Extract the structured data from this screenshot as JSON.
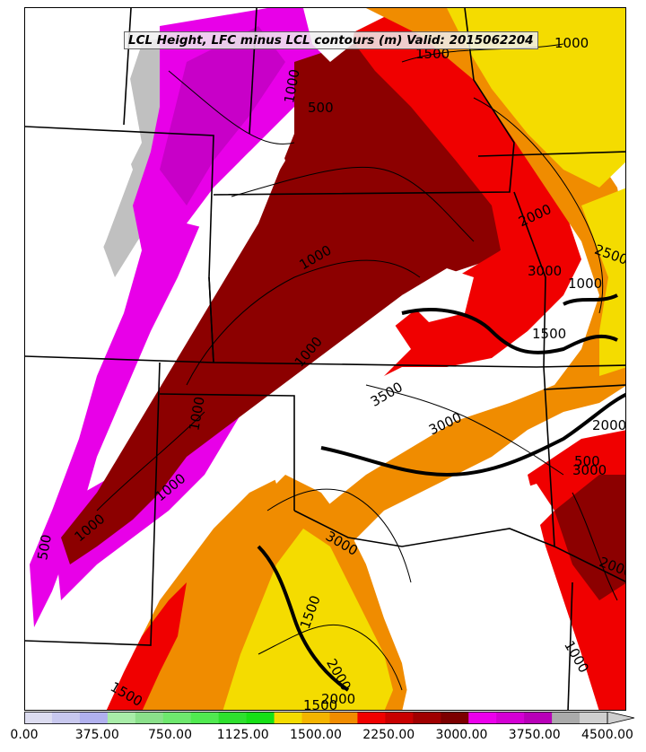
{
  "title": "LCL Height, LFC minus LCL contours (m) Valid: 2015062204",
  "colorbar": {
    "colors": [
      "#dcdcf0",
      "#c8c8ee",
      "#b0b0ee",
      "#a8eca8",
      "#8ae08a",
      "#6ee86e",
      "#50ea50",
      "#2ee02e",
      "#16e016",
      "#f4dc00",
      "#f4b400",
      "#f08c00",
      "#f00000",
      "#c80000",
      "#a00000",
      "#7c0000",
      "#ec00ec",
      "#d400d4",
      "#b800b8",
      "#aaaaaa",
      "#cfcfcf"
    ],
    "tick_labels": [
      "0.00",
      "375.00",
      "750.00",
      "1125.00",
      "1500.00",
      "2250.00",
      "3000.00",
      "3750.00",
      "4500.00"
    ],
    "extend": "max"
  },
  "contour_labels": [
    "1000",
    "1500",
    "500",
    "1000",
    "1000",
    "2000",
    "2500",
    "3000",
    "1000",
    "1500",
    "3500",
    "3000",
    "2000",
    "500",
    "1000",
    "3000",
    "1000",
    "1500",
    "1000",
    "2000",
    "1500",
    "2000",
    "1500",
    "3000",
    "1000",
    "1000",
    "2000",
    "500"
  ],
  "map_features": [
    "state-boundaries",
    "shaded-lcl-height",
    "lfc-minus-lcl-contours"
  ]
}
